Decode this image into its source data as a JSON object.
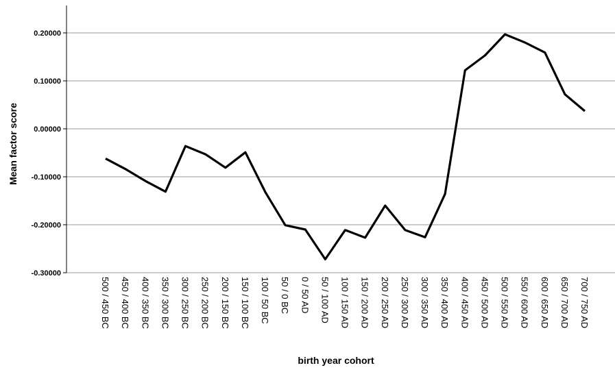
{
  "chart_data": {
    "type": "line",
    "xlabel": "birth year cohort",
    "ylabel": "Mean factor score",
    "ylim": [
      -0.3,
      0.2
    ],
    "yticks": [
      "0.20000",
      "0.10000",
      "0.00000",
      "-0.10000",
      "-0.20000",
      "-0.30000"
    ],
    "ytick_values": [
      0.2,
      0.1,
      0.0,
      -0.1,
      -0.2,
      -0.3
    ],
    "grid": "horizontal",
    "line_color": "#000000",
    "categories": [
      "500 / 450 BC",
      "450 / 400 BC",
      "400 / 350 BC",
      "350 / 300 BC",
      "300 / 250 BC",
      "250 / 200 BC",
      "200 / 150 BC",
      "150 / 100 BC",
      "100 / 50 BC",
      "50 / 0 BC",
      "0 / 50 AD",
      "50 / 100 AD",
      "100 / 150 AD",
      "150 / 200 AD",
      "200 / 250 AD",
      "250 / 300 AD",
      "300 / 350 AD",
      "350 / 400 AD",
      "400 / 450 AD",
      "450 / 500 AD",
      "500 / 550 AD",
      "550 / 600 AD",
      "600 / 650 AD",
      "650 / 700 AD",
      "700 / 750 AD"
    ],
    "values": [
      -0.062,
      -0.084,
      -0.109,
      -0.131,
      -0.036,
      -0.053,
      -0.081,
      -0.049,
      -0.132,
      -0.201,
      -0.21,
      -0.272,
      -0.211,
      -0.227,
      -0.16,
      -0.211,
      -0.226,
      -0.136,
      0.122,
      0.153,
      0.197,
      0.18,
      0.159,
      0.072,
      0.037
    ]
  }
}
